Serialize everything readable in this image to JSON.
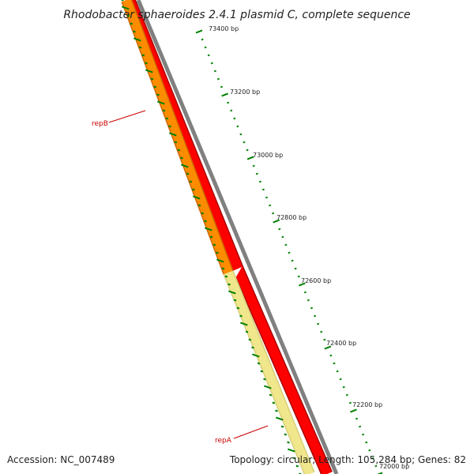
{
  "title": "Rhodobacter sphaeroides 2.4.1 plasmid C, complete sequence",
  "footer": {
    "accession": "Accession: NC_007489",
    "summary": "Topology: circular; Length: 105,284 bp; Genes: 82"
  },
  "scale_ticks": [
    {
      "bp": 73400,
      "label": "73400 bp"
    },
    {
      "bp": 73200,
      "label": "73200 bp"
    },
    {
      "bp": 73000,
      "label": "73000 bp"
    },
    {
      "bp": 72800,
      "label": "72800 bp"
    },
    {
      "bp": 72600,
      "label": "72600 bp"
    },
    {
      "bp": 72400,
      "label": "72400 bp"
    },
    {
      "bp": 72200,
      "label": "72200 bp"
    },
    {
      "bp": 72000,
      "label": "72000 bp"
    }
  ],
  "genes": [
    {
      "name": "repB",
      "label": "repB"
    },
    {
      "name": "repA",
      "label": "repA"
    }
  ],
  "colors": {
    "backbone": "#808080",
    "forward_gene": "#ff0000",
    "reverse_gene_repB": "#ff8c00",
    "reverse_gene_repA": "#f0e68c",
    "gc_ticks": "#008000",
    "gene_label": "#cc0000",
    "text": "#222222"
  }
}
